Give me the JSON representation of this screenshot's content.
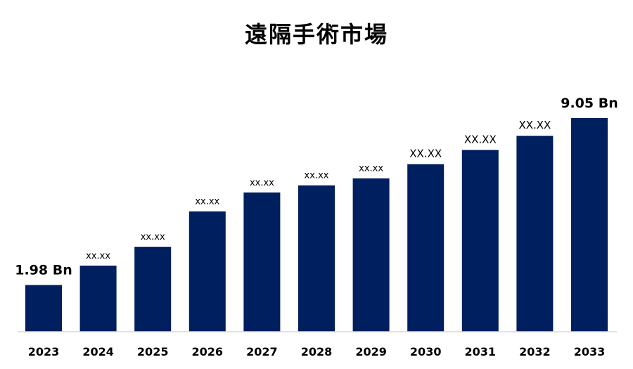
{
  "chart_data": {
    "type": "bar",
    "title": "遠隔手術市場",
    "categories": [
      "2023",
      "2024",
      "2025",
      "2026",
      "2027",
      "2028",
      "2029",
      "2030",
      "2031",
      "2032",
      "2033"
    ],
    "values": [
      1.98,
      2.8,
      3.6,
      5.1,
      5.9,
      6.2,
      6.5,
      7.1,
      7.7,
      8.3,
      9.05
    ],
    "data_labels": [
      "1.98 Bn",
      "xx.xx",
      "xx.xx",
      "xx.xx",
      "xx.xx",
      "xx.xx",
      "xx.xx",
      "XX.XX",
      "XX.XX",
      "XX.XX",
      "9.05 Bn"
    ],
    "xlabel": "",
    "ylabel": "",
    "ylim": [
      0,
      10
    ],
    "grid": false,
    "legend": "none",
    "bar_color": "#001f5f",
    "axis_color": "#d9d9d9"
  }
}
